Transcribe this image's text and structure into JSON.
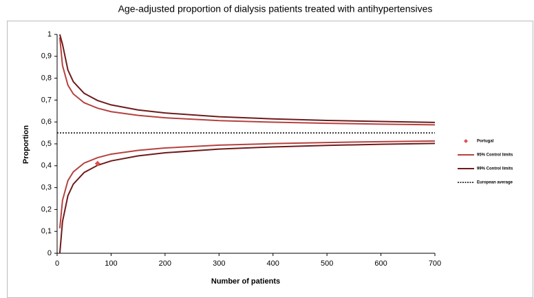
{
  "chart_data": {
    "type": "funnel",
    "title": "Age-adjusted proportion of dialysis patients treated with antihypertensives",
    "x_label": "Number of patients",
    "y_label": "Proportion",
    "x": [
      5,
      10,
      20,
      30,
      50,
      75,
      100,
      150,
      200,
      300,
      400,
      500,
      600,
      700
    ],
    "series": [
      {
        "name": "95% Control limits",
        "color": "#b5413e",
        "upper": [
          0.986,
          0.858,
          0.768,
          0.728,
          0.688,
          0.663,
          0.647,
          0.63,
          0.619,
          0.606,
          0.599,
          0.594,
          0.59,
          0.587
        ],
        "lower": [
          0.114,
          0.242,
          0.332,
          0.372,
          0.412,
          0.437,
          0.453,
          0.47,
          0.481,
          0.494,
          0.501,
          0.506,
          0.51,
          0.513
        ]
      },
      {
        "name": "99% Control limits",
        "color": "#6e1a1a",
        "upper": [
          1,
          0.955,
          0.837,
          0.784,
          0.731,
          0.698,
          0.678,
          0.655,
          0.641,
          0.624,
          0.614,
          0.607,
          0.602,
          0.598
        ],
        "lower": [
          0,
          0.145,
          0.263,
          0.316,
          0.369,
          0.402,
          0.422,
          0.445,
          0.459,
          0.476,
          0.486,
          0.493,
          0.498,
          0.502
        ]
      }
    ],
    "points": {
      "name": "Portugal",
      "color": "#e05050",
      "x": [
        75
      ],
      "y": [
        0.41
      ]
    },
    "reference": {
      "name": "European average",
      "value": 0.55,
      "color": "#000000"
    },
    "xlim": [
      0,
      700
    ],
    "xticks": [
      0,
      100,
      200,
      300,
      400,
      500,
      600,
      700
    ],
    "ylim": [
      0,
      1
    ],
    "yticks": [
      0,
      {
        "value": 0.1,
        "label": "0,1"
      },
      {
        "value": 0.2,
        "label": "0,2"
      },
      {
        "value": 0.3,
        "label": "0,3"
      },
      {
        "value": 0.4,
        "label": "0,4"
      },
      {
        "value": 0.5,
        "label": "0,5"
      },
      {
        "value": 0.6,
        "label": "0,6"
      },
      {
        "value": 0.7,
        "label": "0,7"
      },
      {
        "value": 0.8,
        "label": "0,8"
      },
      {
        "value": 0.9,
        "label": "0,9"
      },
      1
    ],
    "legend": "right"
  }
}
